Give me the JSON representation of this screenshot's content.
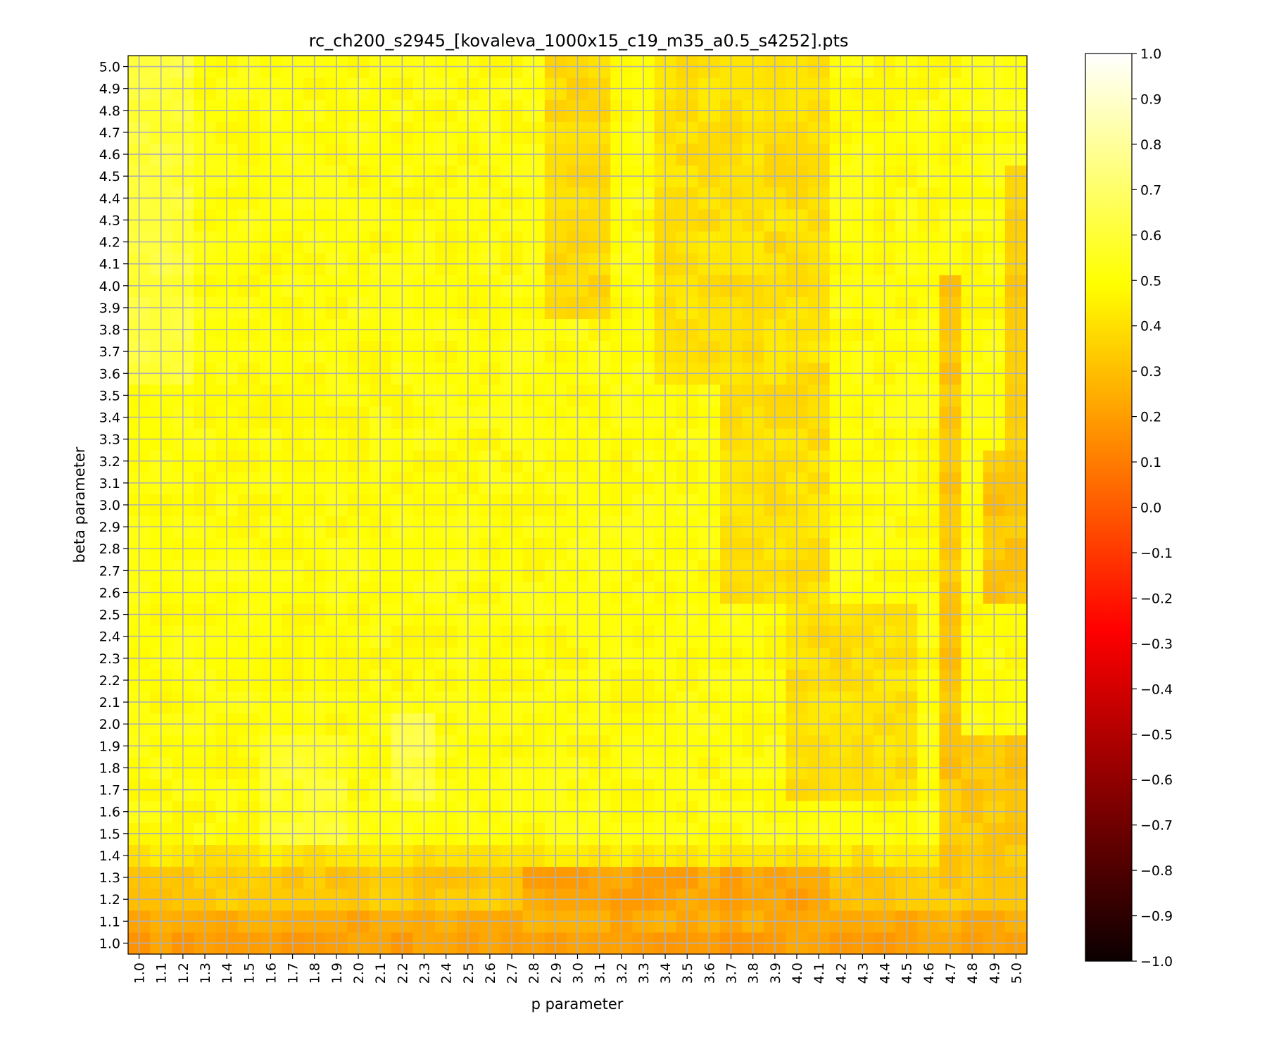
{
  "chart_data": {
    "type": "heatmap",
    "title": "rc_ch200_s2945_[kovaleva_1000x15_c19_m35_a0.5_s4252].pts",
    "xlabel": "p parameter",
    "ylabel": "beta parameter",
    "x_ticks": [
      "1.0",
      "1.1",
      "1.2",
      "1.3",
      "1.4",
      "1.5",
      "1.6",
      "1.7",
      "1.8",
      "1.9",
      "2.0",
      "2.1",
      "2.2",
      "2.3",
      "2.4",
      "2.5",
      "2.6",
      "2.7",
      "2.8",
      "2.9",
      "3.0",
      "3.1",
      "3.2",
      "3.3",
      "3.4",
      "3.5",
      "3.6",
      "3.7",
      "3.8",
      "3.9",
      "4.0",
      "4.1",
      "4.2",
      "4.3",
      "4.4",
      "4.5",
      "4.6",
      "4.7",
      "4.8",
      "4.9",
      "5.0"
    ],
    "y_ticks": [
      "1.0",
      "1.1",
      "1.2",
      "1.3",
      "1.4",
      "1.5",
      "1.6",
      "1.7",
      "1.8",
      "1.9",
      "2.0",
      "2.1",
      "2.2",
      "2.3",
      "2.4",
      "2.5",
      "2.6",
      "2.7",
      "2.8",
      "2.9",
      "3.0",
      "3.1",
      "3.2",
      "3.3",
      "3.4",
      "3.5",
      "3.6",
      "3.7",
      "3.8",
      "3.9",
      "4.0",
      "4.1",
      "4.2",
      "4.3",
      "4.4",
      "4.5",
      "4.6",
      "4.7",
      "4.8",
      "4.9",
      "5.0"
    ],
    "x_range": [
      1.0,
      5.0
    ],
    "y_range": [
      1.0,
      5.0
    ],
    "step": 0.1,
    "colorbar": {
      "colormap": "hot",
      "range": [
        -1.0,
        1.0
      ],
      "ticks": [
        "1.0",
        "0.9",
        "0.8",
        "0.7",
        "0.6",
        "0.5",
        "0.4",
        "0.3",
        "0.2",
        "0.1",
        "0.0",
        "−0.1",
        "−0.2",
        "−0.3",
        "−0.4",
        "−0.5",
        "−0.6",
        "−0.7",
        "−0.8",
        "−0.9",
        "−1.0"
      ]
    },
    "grid": true,
    "approximate_values": {
      "description_of_regions": "",
      "base_value": 0.5
    }
  }
}
